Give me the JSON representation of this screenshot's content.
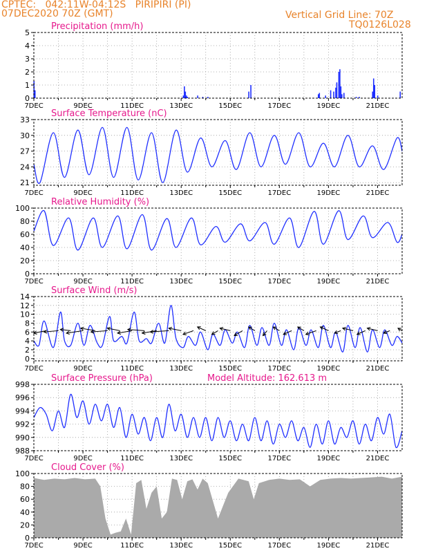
{
  "header": {
    "line1": "CPTEC:   042:11W-04:12S   PIRIPIRI (PI)",
    "line2": "07DEC2020 70Z (GMT)",
    "grid_note": "Vertical Grid Line: 70Z",
    "code": "TQ0126L028"
  },
  "colors": {
    "header": "#e8832a",
    "title": "#e6198c",
    "series": "#1f2fff",
    "cloud": "#aaaaaa",
    "wind_arrow": "#000000"
  },
  "chart_data": [
    {
      "id": "precip",
      "type": "bar",
      "title": "Precipitation (mm/h)",
      "ylim": [
        0,
        5
      ],
      "yticks": [
        0,
        1,
        2,
        3,
        4,
        5
      ],
      "xticks": [
        "7DEC",
        "9DEC",
        "11DEC",
        "13DEC",
        "15DEC",
        "17DEC",
        "19DEC",
        "21DEC"
      ],
      "grid": true,
      "hours": [
        0,
        1,
        146,
        147,
        148,
        149,
        150,
        160,
        165,
        170,
        210,
        212,
        278,
        279,
        285,
        290,
        293,
        295,
        296,
        298,
        299,
        300,
        301,
        303,
        315,
        318,
        331,
        332,
        333,
        336,
        358
      ],
      "values": [
        1.3,
        0.6,
        0.2,
        0.9,
        0.5,
        0.2,
        0.1,
        0.2,
        0.1,
        0.1,
        0.5,
        1.0,
        0.3,
        0.4,
        0.2,
        0.6,
        0.5,
        0.8,
        1.2,
        2.0,
        2.2,
        0.9,
        0.3,
        0.4,
        0.1,
        0.1,
        0.5,
        1.5,
        1.0,
        0.2,
        0.5
      ]
    },
    {
      "id": "temp",
      "type": "line",
      "title": "Surface Temperature (nC)",
      "ylim": [
        20.5,
        33
      ],
      "yticks": [
        21,
        24,
        27,
        30,
        33
      ],
      "xticks": [
        "7DEC",
        "9DEC",
        "11DEC",
        "13DEC",
        "15DEC",
        "17DEC",
        "19DEC",
        "21DEC"
      ],
      "grid": true,
      "hours": [
        0,
        6,
        19,
        30,
        43,
        54,
        67,
        78,
        91,
        102,
        115,
        126,
        139,
        150,
        163,
        174,
        187,
        198,
        211,
        222,
        235,
        246,
        259,
        270,
        283,
        294,
        307,
        318,
        331,
        342,
        355,
        360
      ],
      "values": [
        24.5,
        21.0,
        30.5,
        22.0,
        31.0,
        22.5,
        31.5,
        22.0,
        31.5,
        21.5,
        30.5,
        21.0,
        31.0,
        23.0,
        29.5,
        24.0,
        29.0,
        23.5,
        30.5,
        24.0,
        30.0,
        24.5,
        30.5,
        24.0,
        28.5,
        24.0,
        30.0,
        24.0,
        28.0,
        23.5,
        29.5,
        27.0
      ]
    },
    {
      "id": "rh",
      "type": "line",
      "title": "Relative Humidity (%)",
      "ylim": [
        0,
        100
      ],
      "yticks": [
        0,
        20,
        40,
        60,
        80,
        100
      ],
      "xticks": [
        "7DEC",
        "9DEC",
        "11DEC",
        "13DEC",
        "15DEC",
        "17DEC",
        "19DEC",
        "21DEC"
      ],
      "grid": true,
      "hours": [
        0,
        10,
        19,
        34,
        43,
        58,
        67,
        82,
        91,
        106,
        115,
        130,
        139,
        154,
        163,
        178,
        187,
        202,
        211,
        226,
        235,
        250,
        259,
        274,
        283,
        298,
        307,
        322,
        331,
        346,
        355,
        360
      ],
      "values": [
        65,
        96,
        43,
        85,
        36,
        85,
        40,
        88,
        38,
        90,
        36,
        84,
        40,
        85,
        44,
        72,
        48,
        76,
        50,
        78,
        45,
        85,
        40,
        95,
        45,
        96,
        52,
        88,
        55,
        78,
        48,
        60
      ]
    },
    {
      "id": "wind",
      "type": "line",
      "title": "Surface Wind (m/s)",
      "ylim": [
        -0.5,
        14
      ],
      "yticks": [
        0,
        2,
        4,
        6,
        8,
        10,
        12,
        14
      ],
      "xticks": [
        "7DEC",
        "9DEC",
        "11DEC",
        "13DEC",
        "15DEC",
        "17DEC",
        "19DEC",
        "21DEC"
      ],
      "grid": true,
      "hours": [
        0,
        5,
        10,
        19,
        26,
        30,
        36,
        43,
        49,
        55,
        62,
        67,
        74,
        78,
        86,
        91,
        98,
        103,
        110,
        115,
        122,
        128,
        134,
        139,
        146,
        151,
        158,
        163,
        170,
        175,
        182,
        187,
        194,
        199,
        206,
        211,
        218,
        223,
        230,
        235,
        242,
        247,
        254,
        259,
        266,
        271,
        278,
        283,
        290,
        295,
        302,
        307,
        314,
        319,
        326,
        331,
        338,
        343,
        350,
        355,
        360
      ],
      "values": [
        4.0,
        3.0,
        8.5,
        2.5,
        10.5,
        4.0,
        3.0,
        8.0,
        3.0,
        7.5,
        3.5,
        3.0,
        9.5,
        4.0,
        5.0,
        3.5,
        10.5,
        4.0,
        4.5,
        3.5,
        8.0,
        3.5,
        12.0,
        4.5,
        2.5,
        5.0,
        3.0,
        6.0,
        2.0,
        5.5,
        3.0,
        6.5,
        3.5,
        6.0,
        2.5,
        7.5,
        3.0,
        7.0,
        3.0,
        8.0,
        3.0,
        6.5,
        2.0,
        7.0,
        3.0,
        6.5,
        2.5,
        7.5,
        2.5,
        6.0,
        1.5,
        7.5,
        2.5,
        7.0,
        1.5,
        6.5,
        2.5,
        6.5,
        3.0,
        5.0,
        3.5
      ],
      "arrows": {
        "hours": [
          12,
          24,
          36,
          48,
          60,
          72,
          84,
          96,
          108,
          120,
          132,
          144,
          156,
          168,
          180,
          192,
          204,
          216,
          228,
          240,
          252,
          264,
          276,
          288,
          300,
          312,
          324,
          336,
          348,
          360
        ],
        "u": [
          0.6,
          0.7,
          0.5,
          0.8,
          0.7,
          0.8,
          0.6,
          0.7,
          0.8,
          0.7,
          0.9,
          0.6,
          0.5,
          0.4,
          0.3,
          0.5,
          0.4,
          0.3,
          0.2,
          0.3,
          0.4,
          0.3,
          0.5,
          0.4,
          0.3,
          0.5,
          0.4,
          0.5,
          0.3,
          0.2
        ],
        "v": [
          -0.2,
          -0.1,
          0.1,
          -0.2,
          0.2,
          -0.1,
          0.2,
          -0.2,
          0.1,
          -0.2,
          -0.1,
          0.2,
          -0.3,
          0.3,
          -0.3,
          0.2,
          -0.4,
          0.3,
          -0.4,
          0.3,
          -0.3,
          0.3,
          -0.3,
          0.3,
          -0.2,
          0.2,
          -0.3,
          0.2,
          -0.2,
          0.2
        ]
      }
    },
    {
      "id": "pres",
      "type": "line",
      "title": "Surface Pressure (hPa)",
      "subtitle": "Model Altitude: 162.613 m",
      "ylim": [
        988,
        998
      ],
      "yticks": [
        988,
        990,
        992,
        994,
        996,
        998
      ],
      "xticks": [
        "7DEC",
        "9DEC",
        "11DEC",
        "13DEC",
        "15DEC",
        "17DEC",
        "19DEC",
        "21DEC"
      ],
      "grid": true,
      "hours": [
        0,
        6,
        12,
        18,
        24,
        30,
        36,
        42,
        48,
        54,
        60,
        66,
        72,
        78,
        84,
        90,
        96,
        102,
        108,
        114,
        120,
        126,
        132,
        138,
        144,
        150,
        156,
        162,
        168,
        174,
        180,
        186,
        192,
        198,
        204,
        210,
        216,
        222,
        228,
        234,
        240,
        246,
        252,
        258,
        264,
        270,
        276,
        282,
        288,
        294,
        300,
        306,
        312,
        318,
        324,
        330,
        336,
        342,
        348,
        354,
        360
      ],
      "values": [
        993.0,
        994.5,
        993.5,
        991.0,
        994.0,
        991.5,
        996.5,
        993.0,
        995.5,
        992.0,
        995.0,
        992.5,
        995.0,
        991.5,
        994.5,
        990.0,
        993.5,
        990.5,
        993.0,
        989.5,
        993.0,
        990.0,
        995.0,
        991.0,
        993.5,
        990.0,
        993.0,
        990.0,
        993.0,
        989.5,
        993.0,
        990.0,
        992.5,
        989.5,
        992.0,
        989.5,
        993.0,
        989.5,
        992.5,
        989.0,
        992.0,
        990.0,
        992.5,
        989.5,
        991.5,
        988.5,
        992.0,
        989.0,
        992.5,
        989.0,
        991.5,
        990.0,
        992.5,
        989.0,
        992.0,
        989.5,
        993.0,
        990.5,
        993.5,
        988.5,
        991.0
      ]
    },
    {
      "id": "cloud",
      "type": "area",
      "title": "Cloud Cover (%)",
      "ylim": [
        0,
        100
      ],
      "yticks": [
        0,
        20,
        40,
        60,
        80,
        100
      ],
      "xticks": [
        "7DEC",
        "9DEC",
        "11DEC",
        "13DEC",
        "15DEC",
        "17DEC",
        "19DEC",
        "21DEC"
      ],
      "grid": true,
      "hours": [
        0,
        10,
        20,
        30,
        40,
        50,
        60,
        65,
        70,
        75,
        80,
        85,
        90,
        95,
        100,
        105,
        110,
        115,
        120,
        125,
        130,
        135,
        140,
        145,
        150,
        155,
        160,
        165,
        170,
        180,
        190,
        200,
        210,
        215,
        220,
        230,
        240,
        250,
        260,
        270,
        280,
        290,
        300,
        310,
        320,
        330,
        340,
        350,
        360
      ],
      "values": [
        93,
        90,
        92,
        91,
        93,
        91,
        92,
        80,
        30,
        5,
        8,
        10,
        30,
        5,
        85,
        90,
        45,
        70,
        80,
        30,
        40,
        92,
        90,
        60,
        88,
        91,
        75,
        92,
        85,
        30,
        70,
        92,
        88,
        60,
        85,
        90,
        92,
        90,
        91,
        80,
        90,
        92,
        93,
        92,
        93,
        94,
        95,
        92,
        95
      ]
    }
  ]
}
